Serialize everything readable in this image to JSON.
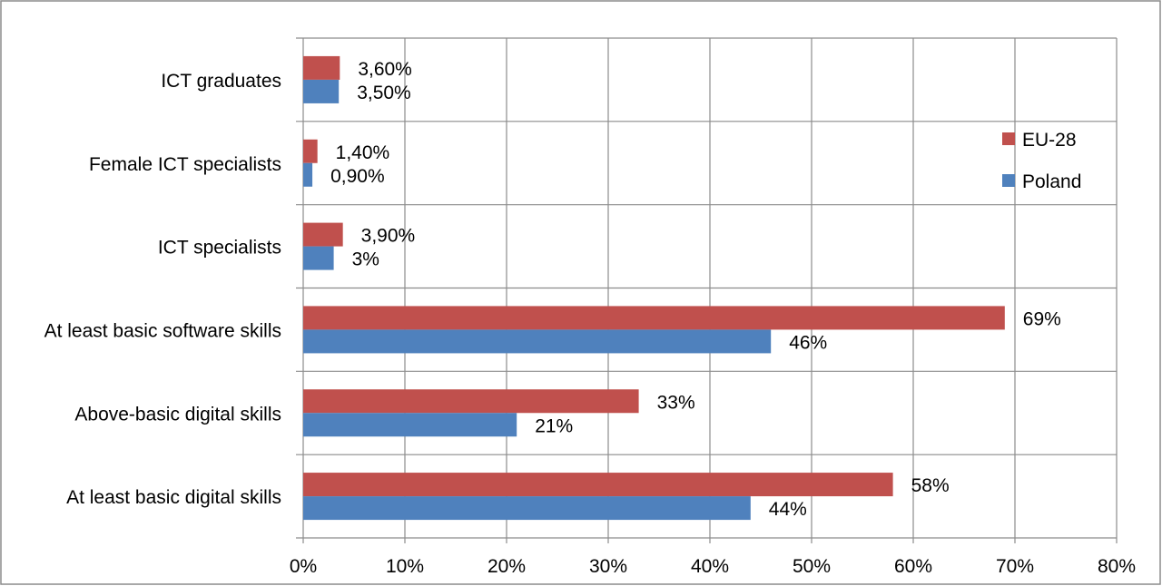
{
  "chart_data": {
    "type": "bar",
    "orientation": "horizontal",
    "categories": [
      "ICT graduates",
      "Female ICT specialists",
      "ICT specialists",
      "At least basic software skills",
      "Above-basic digital skills",
      "At least basic digital skills"
    ],
    "series": [
      {
        "name": "EU-28",
        "color": "#c0504d",
        "values": [
          3.6,
          1.4,
          3.9,
          69,
          33,
          58
        ],
        "labels": [
          "3,60%",
          "1,40%",
          "3,90%",
          "69%",
          "33%",
          "58%"
        ]
      },
      {
        "name": "Poland",
        "color": "#4f81bd",
        "values": [
          3.5,
          0.9,
          3,
          46,
          21,
          44
        ],
        "labels": [
          "3,50%",
          "0,90%",
          "3%",
          "46%",
          "21%",
          "44%"
        ]
      }
    ],
    "x_ticks": [
      "0%",
      "10%",
      "20%",
      "30%",
      "40%",
      "50%",
      "60%",
      "70%",
      "80%"
    ],
    "xlim": [
      0,
      80
    ],
    "grid": true,
    "legend_position": "right",
    "title": "",
    "xlabel": "",
    "ylabel": ""
  }
}
